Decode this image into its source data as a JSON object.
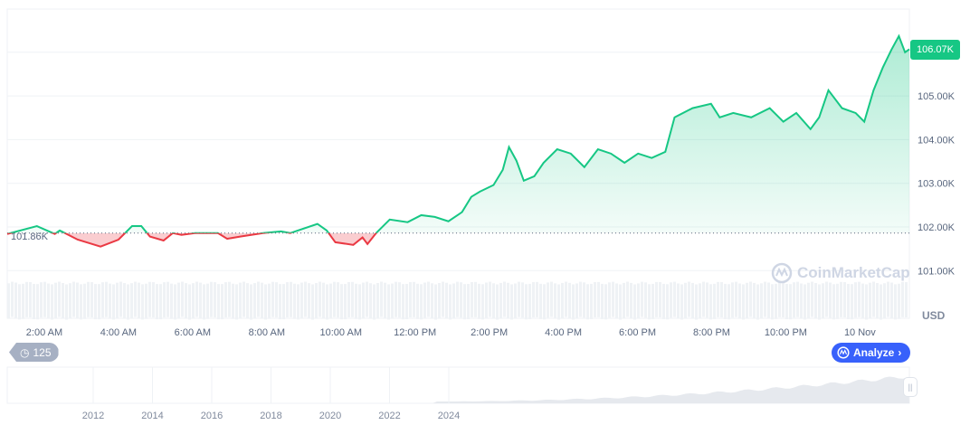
{
  "chart_data": {
    "type": "line",
    "currency_label": "USD",
    "reference_price": 101860,
    "reference_label": "101.86K",
    "current_price_label": "106.07K",
    "ylim": [
      100700,
      106500
    ],
    "y_ticks": [
      {
        "value": 101000,
        "label": "101.00K"
      },
      {
        "value": 102000,
        "label": "102.00K"
      },
      {
        "value": 103000,
        "label": "103.00K"
      },
      {
        "value": 104000,
        "label": "104.00K"
      },
      {
        "value": 105000,
        "label": "105.00K"
      }
    ],
    "x_ticks": [
      {
        "time": "Nov 9 02:00",
        "label": "2:00 AM"
      },
      {
        "time": "Nov 9 04:00",
        "label": "4:00 AM"
      },
      {
        "time": "Nov 9 06:00",
        "label": "6:00 AM"
      },
      {
        "time": "Nov 9 08:00",
        "label": "8:00 AM"
      },
      {
        "time": "Nov 9 10:00",
        "label": "10:00 AM"
      },
      {
        "time": "Nov 9 12:00",
        "label": "12:00 PM"
      },
      {
        "time": "Nov 9 14:00",
        "label": "2:00 PM"
      },
      {
        "time": "Nov 9 16:00",
        "label": "4:00 PM"
      },
      {
        "time": "Nov 9 18:00",
        "label": "6:00 PM"
      },
      {
        "time": "Nov 9 20:00",
        "label": "8:00 PM"
      },
      {
        "time": "Nov 9 22:00",
        "label": "10:00 PM"
      },
      {
        "time": "Nov 10 00:00",
        "label": "10 Nov"
      }
    ],
    "xlim": [
      "Nov 9 01:00",
      "Nov 10 01:20"
    ],
    "colors": {
      "up": "#16c784",
      "down": "#ea3943",
      "grid": "#eff2f5",
      "volume": "#eff2f5"
    },
    "series": [
      {
        "points": [
          [
            "Nov 9 01:00",
            101840
          ],
          [
            "Nov 9 01:48",
            102020
          ],
          [
            "Nov 9 02:17",
            101840
          ],
          [
            "Nov 9 02:25",
            101920
          ],
          [
            "Nov 9 02:54",
            101710
          ],
          [
            "Nov 9 03:31",
            101550
          ],
          [
            "Nov 9 04:00",
            101710
          ],
          [
            "Nov 9 04:22",
            102020
          ],
          [
            "Nov 9 04:37",
            102020
          ],
          [
            "Nov 9 04:51",
            101780
          ],
          [
            "Nov 9 05:13",
            101690
          ],
          [
            "Nov 9 05:28",
            101860
          ],
          [
            "Nov 9 05:42",
            101820
          ],
          [
            "Nov 9 06:04",
            101860
          ],
          [
            "Nov 9 06:41",
            101860
          ],
          [
            "Nov 9 06:56",
            101730
          ],
          [
            "Nov 9 07:17",
            101780
          ],
          [
            "Nov 9 07:54",
            101860
          ],
          [
            "Nov 9 08:23",
            101900
          ],
          [
            "Nov 9 08:38",
            101860
          ],
          [
            "Nov 9 09:22",
            102070
          ],
          [
            "Nov 9 09:37",
            101920
          ],
          [
            "Nov 9 09:51",
            101650
          ],
          [
            "Nov 9 10:20",
            101590
          ],
          [
            "Nov 9 10:35",
            101760
          ],
          [
            "Nov 9 10:43",
            101610
          ],
          [
            "Nov 9 10:57",
            101860
          ],
          [
            "Nov 9 11:19",
            102170
          ],
          [
            "Nov 9 11:48",
            102110
          ],
          [
            "Nov 9 12:10",
            102270
          ],
          [
            "Nov 9 12:32",
            102230
          ],
          [
            "Nov 9 12:54",
            102130
          ],
          [
            "Nov 9 13:16",
            102340
          ],
          [
            "Nov 9 13:31",
            102690
          ],
          [
            "Nov 9 13:45",
            102810
          ],
          [
            "Nov 9 14:07",
            102960
          ],
          [
            "Nov 9 14:22",
            103310
          ],
          [
            "Nov 9 14:32",
            103830
          ],
          [
            "Nov 9 14:44",
            103520
          ],
          [
            "Nov 9 14:56",
            103060
          ],
          [
            "Nov 9 15:13",
            103160
          ],
          [
            "Nov 9 15:28",
            103470
          ],
          [
            "Nov 9 15:50",
            103780
          ],
          [
            "Nov 9 16:12",
            103680
          ],
          [
            "Nov 9 16:34",
            103370
          ],
          [
            "Nov 9 16:56",
            103780
          ],
          [
            "Nov 9 17:17",
            103680
          ],
          [
            "Nov 9 17:39",
            103470
          ],
          [
            "Nov 9 18:01",
            103680
          ],
          [
            "Nov 9 18:23",
            103580
          ],
          [
            "Nov 9 18:45",
            103720
          ],
          [
            "Nov 9 19:00",
            104510
          ],
          [
            "Nov 9 19:29",
            104720
          ],
          [
            "Nov 9 19:59",
            104820
          ],
          [
            "Nov 9 20:13",
            104510
          ],
          [
            "Nov 9 20:35",
            104610
          ],
          [
            "Nov 9 21:04",
            104510
          ],
          [
            "Nov 9 21:34",
            104720
          ],
          [
            "Nov 9 21:56",
            104410
          ],
          [
            "Nov 9 22:17",
            104610
          ],
          [
            "Nov 9 22:40",
            104240
          ],
          [
            "Nov 9 22:54",
            104510
          ],
          [
            "Nov 9 23:09",
            105130
          ],
          [
            "Nov 9 23:31",
            104720
          ],
          [
            "Nov 9 23:53",
            104610
          ],
          [
            "Nov 10 00:07",
            104410
          ],
          [
            "Nov 10 00:22",
            105130
          ],
          [
            "Nov 10 00:37",
            105650
          ],
          [
            "Nov 10 00:51",
            106060
          ],
          [
            "Nov 10 01:03",
            106370
          ],
          [
            "Nov 10 01:13",
            106000
          ],
          [
            "Nov 10 01:20",
            106070
          ]
        ]
      }
    ],
    "navigator": {
      "x_ticks": [
        "2012",
        "2014",
        "2016",
        "2018",
        "2020",
        "2022",
        "2024"
      ]
    },
    "grid": true
  },
  "controls": {
    "history_count": "125",
    "analyze_label": "Analyze"
  },
  "watermark": "CoinMarketCap"
}
